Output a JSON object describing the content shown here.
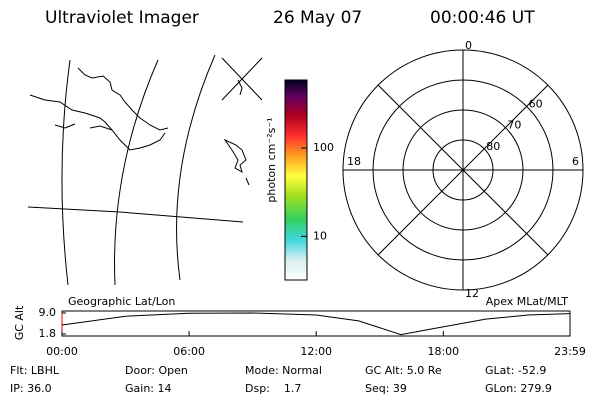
{
  "header": {
    "title": "Ultraviolet Imager",
    "date": "26 May 07",
    "time": "00:00:46 UT"
  },
  "colorbar": {
    "label": "photon cm⁻²s⁻¹",
    "log": true,
    "ylim": [
      3.2,
      590
    ],
    "yticks": [
      10,
      100
    ]
  },
  "polar": {
    "mlt_ticks": [
      12,
      18,
      6,
      0
    ],
    "mlat_ticks": [
      60,
      70,
      80
    ]
  },
  "altitude_plot": {
    "type": "line",
    "y_label": "GC Alt",
    "left_label": "Geographic Lat/Lon",
    "right_label": "Apex MLat/MLT",
    "ylim": [
      1.8,
      9.0
    ],
    "yticks": [
      {
        "value": 9.0,
        "label": "9.0"
      },
      {
        "value": 1.8,
        "label": "1.8"
      }
    ],
    "xlim": [
      0,
      23.98
    ],
    "xticks": [
      {
        "value": 0,
        "label": "00:00"
      },
      {
        "value": 6,
        "label": "06:00"
      },
      {
        "value": 12,
        "label": "12:00"
      },
      {
        "value": 18,
        "label": "18:00"
      },
      {
        "value": 23.98,
        "label": "23:59"
      }
    ],
    "x": [
      0,
      3,
      6,
      9,
      12,
      14,
      16,
      17.5,
      20,
      22,
      23.98
    ],
    "values": [
      4.9,
      7.9,
      8.9,
      9.0,
      8.3,
      6.3,
      1.6,
      3.6,
      6.9,
      8.3,
      8.8
    ]
  },
  "footer": [
    [
      "Flt: LBHL",
      "Door: Open",
      "Mode: Normal",
      "GC Alt: 5.0 Re",
      "GLat: -52.9"
    ],
    [
      "IP: 36.0",
      "Gain: 14",
      "Dsp:    1.7",
      "Seq: 39",
      "GLon: 279.9"
    ]
  ]
}
